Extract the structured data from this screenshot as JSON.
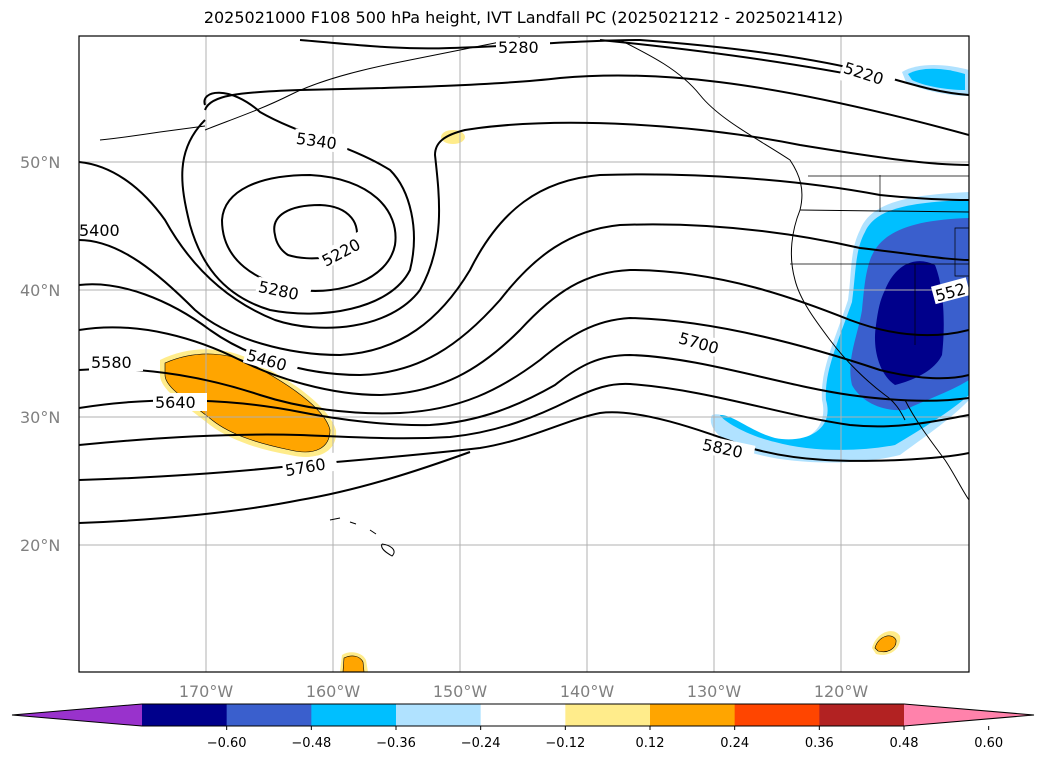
{
  "title": "2025021000 F108 500 hPa height, IVT Landfall PC (2025021212 - 2025021412)",
  "map": {
    "lat_labels": [
      "50°N",
      "40°N",
      "30°N",
      "20°N"
    ],
    "lon_labels": [
      "170°W",
      "160°W",
      "150°W",
      "140°W",
      "130°W",
      "120°W"
    ],
    "contour_labels": [
      "5280",
      "5220",
      "5340",
      "5400",
      "5220",
      "5280",
      "5460",
      "5580",
      "5640",
      "5760",
      "5700",
      "5820",
      "552"
    ]
  },
  "colorbar": {
    "ticks": [
      "−0.60",
      "−0.48",
      "−0.36",
      "−0.24",
      "−0.12",
      "0.12",
      "0.24",
      "0.36",
      "0.48",
      "0.60"
    ],
    "colors": [
      "#9932cc",
      "#00008b",
      "#3a5fcd",
      "#00bfff",
      "#b0e2ff",
      "#ffffff",
      "#ffec8b",
      "#ffa500",
      "#ff4500",
      "#b22222",
      "#ff82ab"
    ]
  }
}
